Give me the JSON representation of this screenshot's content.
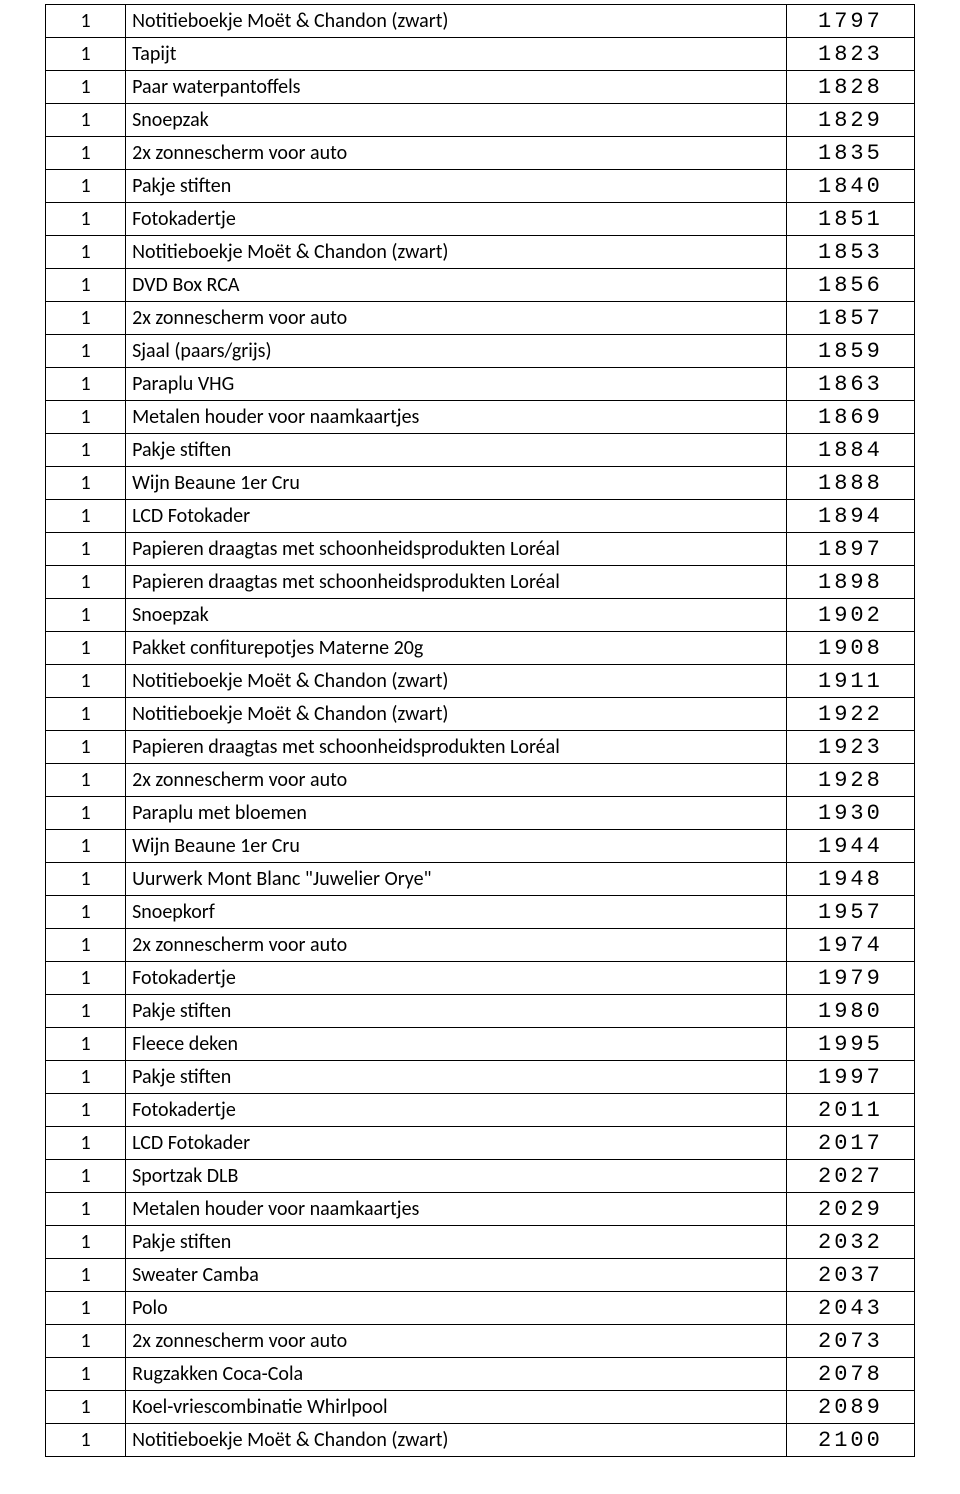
{
  "table": {
    "rows": [
      {
        "qty": "1",
        "desc": "Notitieboekje Moët & Chandon (zwart)",
        "num": "1797"
      },
      {
        "qty": "1",
        "desc": "Tapijt",
        "num": "1823"
      },
      {
        "qty": "1",
        "desc": "Paar waterpantoffels",
        "num": "1828"
      },
      {
        "qty": "1",
        "desc": "Snoepzak",
        "num": "1829"
      },
      {
        "qty": "1",
        "desc": "2x zonnescherm voor auto",
        "num": "1835"
      },
      {
        "qty": "1",
        "desc": "Pakje stiften",
        "num": "1840"
      },
      {
        "qty": "1",
        "desc": "Fotokadertje",
        "num": "1851"
      },
      {
        "qty": "1",
        "desc": "Notitieboekje Moët & Chandon (zwart)",
        "num": "1853"
      },
      {
        "qty": "1",
        "desc": "DVD Box RCA",
        "num": "1856"
      },
      {
        "qty": "1",
        "desc": "2x zonnescherm voor auto",
        "num": "1857"
      },
      {
        "qty": "1",
        "desc": "Sjaal (paars/grijs)",
        "num": "1859"
      },
      {
        "qty": "1",
        "desc": "Paraplu VHG",
        "num": "1863"
      },
      {
        "qty": "1",
        "desc": "Metalen houder voor naamkaartjes",
        "num": "1869"
      },
      {
        "qty": "1",
        "desc": "Pakje stiften",
        "num": "1884"
      },
      {
        "qty": "1",
        "desc": "Wijn Beaune 1er Cru",
        "num": "1888"
      },
      {
        "qty": "1",
        "desc": "LCD Fotokader",
        "num": "1894"
      },
      {
        "qty": "1",
        "desc": "Papieren draagtas met schoonheidsprodukten Loréal",
        "num": "1897"
      },
      {
        "qty": "1",
        "desc": "Papieren draagtas met schoonheidsprodukten Loréal",
        "num": "1898"
      },
      {
        "qty": "1",
        "desc": "Snoepzak",
        "num": "1902"
      },
      {
        "qty": "1",
        "desc": "Pakket confiturepotjes Materne 20g",
        "num": "1908"
      },
      {
        "qty": "1",
        "desc": "Notitieboekje Moët & Chandon (zwart)",
        "num": "1911"
      },
      {
        "qty": "1",
        "desc": "Notitieboekje Moët & Chandon (zwart)",
        "num": "1922"
      },
      {
        "qty": "1",
        "desc": "Papieren draagtas met schoonheidsprodukten Loréal",
        "num": "1923"
      },
      {
        "qty": "1",
        "desc": "2x zonnescherm voor auto",
        "num": "1928"
      },
      {
        "qty": "1",
        "desc": "Paraplu met bloemen",
        "num": "1930"
      },
      {
        "qty": "1",
        "desc": "Wijn Beaune 1er Cru",
        "num": "1944"
      },
      {
        "qty": "1",
        "desc": "Uurwerk Mont Blanc \"Juwelier Orye\"",
        "num": "1948"
      },
      {
        "qty": "1",
        "desc": "Snoepkorf",
        "num": "1957"
      },
      {
        "qty": "1",
        "desc": "2x zonnescherm voor auto",
        "num": "1974"
      },
      {
        "qty": "1",
        "desc": "Fotokadertje",
        "num": "1979"
      },
      {
        "qty": "1",
        "desc": "Pakje stiften",
        "num": "1980"
      },
      {
        "qty": "1",
        "desc": "Fleece deken",
        "num": "1995"
      },
      {
        "qty": "1",
        "desc": "Pakje stiften",
        "num": "1997"
      },
      {
        "qty": "1",
        "desc": "Fotokadertje",
        "num": "2011"
      },
      {
        "qty": "1",
        "desc": "LCD Fotokader",
        "num": "2017"
      },
      {
        "qty": "1",
        "desc": "Sportzak DLB",
        "num": "2027"
      },
      {
        "qty": "1",
        "desc": "Metalen houder voor naamkaartjes",
        "num": "2029"
      },
      {
        "qty": "1",
        "desc": "Pakje stiften",
        "num": "2032"
      },
      {
        "qty": "1",
        "desc": "Sweater Camba",
        "num": "2037"
      },
      {
        "qty": "1",
        "desc": "Polo",
        "num": "2043"
      },
      {
        "qty": "1",
        "desc": "2x zonnescherm voor auto",
        "num": "2073"
      },
      {
        "qty": "1",
        "desc": "Rugzakken Coca-Cola",
        "num": "2078"
      },
      {
        "qty": "1",
        "desc": "Koel-vriescombinatie Whirlpool",
        "num": "2089"
      },
      {
        "qty": "1",
        "desc": "Notitieboekje Moët & Chandon (zwart)",
        "num": "2100"
      }
    ]
  }
}
